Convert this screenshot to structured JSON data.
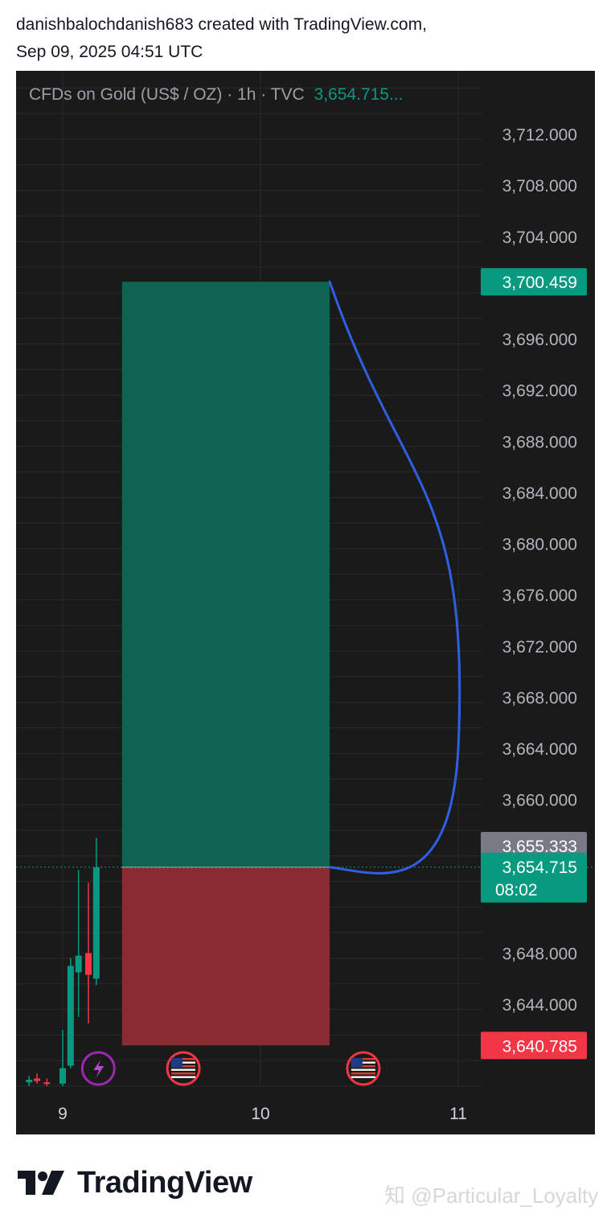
{
  "header": {
    "line1": "danishbalochdanish683 created with TradingView.com,",
    "line2": "Sep 09, 2025 04:51 UTC"
  },
  "legend": {
    "symbol": "CFDs on Gold (US$ / OZ) · 1h · TVC",
    "price": "3,654.715..."
  },
  "footer": {
    "brand": "TradingView",
    "watermark": "知 @Particular_Loyalty"
  },
  "colors": {
    "background": "#1a1a1a",
    "up": "#089981",
    "down": "#f23645",
    "profit_zone": "#0f6352",
    "loss_zone": "#8a2a33",
    "curve": "#2f5fe3",
    "gray_label": "#787b86"
  },
  "chart_data": {
    "type": "candlestick",
    "y_axis": {
      "ylim": [
        3637.6,
        3716.0
      ],
      "ticks": [
        3644.0,
        3648.0,
        3660.0,
        3664.0,
        3668.0,
        3672.0,
        3676.0,
        3680.0,
        3684.0,
        3688.0,
        3692.0,
        3696.0,
        3704.0,
        3708.0,
        3712.0
      ],
      "tick_labels": [
        "3,644.000",
        "3,648.000",
        "3,660.000",
        "3,664.000",
        "3,668.000",
        "3,672.000",
        "3,676.000",
        "3,680.000",
        "3,684.000",
        "3,688.000",
        "3,692.000",
        "3,696.000",
        "3,704.000",
        "3,708.000",
        "3,712.000"
      ]
    },
    "x_axis": {
      "ticks": [
        9,
        10,
        11
      ],
      "tick_labels": [
        "9",
        "10",
        "11"
      ]
    },
    "candles": [
      {
        "t": 8.83,
        "o": 3637.9,
        "h": 3638.4,
        "l": 3637.6,
        "c": 3638.1
      },
      {
        "t": 8.87,
        "o": 3638.2,
        "h": 3638.6,
        "l": 3637.8,
        "c": 3638.0
      },
      {
        "t": 8.92,
        "o": 3637.9,
        "h": 3638.2,
        "l": 3637.6,
        "c": 3637.8
      },
      {
        "t": 9.0,
        "o": 3637.8,
        "h": 3642.0,
        "l": 3637.6,
        "c": 3639.0
      },
      {
        "t": 9.04,
        "o": 3639.2,
        "h": 3647.6,
        "l": 3639.0,
        "c": 3647.0
      },
      {
        "t": 9.08,
        "o": 3646.5,
        "h": 3654.5,
        "l": 3643.0,
        "c": 3647.8
      },
      {
        "t": 9.13,
        "o": 3648.0,
        "h": 3653.5,
        "l": 3642.5,
        "c": 3646.3
      },
      {
        "t": 9.17,
        "o": 3646.0,
        "h": 3657.0,
        "l": 3645.5,
        "c": 3654.7
      }
    ],
    "position": {
      "type": "long",
      "entry": 3654.715,
      "target": 3700.459,
      "stop": 3640.785,
      "t_start": 9.3,
      "t_end": 10.35
    },
    "curve": {
      "points": [
        [
          10.35,
          3700.459
        ],
        [
          11.0,
          3664.0
        ],
        [
          10.35,
          3654.715
        ]
      ]
    },
    "price_labels": [
      {
        "value": 3700.459,
        "text": "3,700.459",
        "kind": "target"
      },
      {
        "value": 3655.333,
        "text": "3,655.333",
        "kind": "gray"
      },
      {
        "value": 3654.715,
        "text": "3,654.715",
        "sub": "08:02",
        "kind": "current"
      },
      {
        "value": 3640.785,
        "text": "3,640.785",
        "kind": "stop"
      }
    ],
    "events": [
      {
        "t": 9.18,
        "icon": "lightning-icon"
      },
      {
        "t": 9.61,
        "icon": "us-flag-icon"
      },
      {
        "t": 10.52,
        "icon": "us-flag-icon"
      }
    ]
  }
}
